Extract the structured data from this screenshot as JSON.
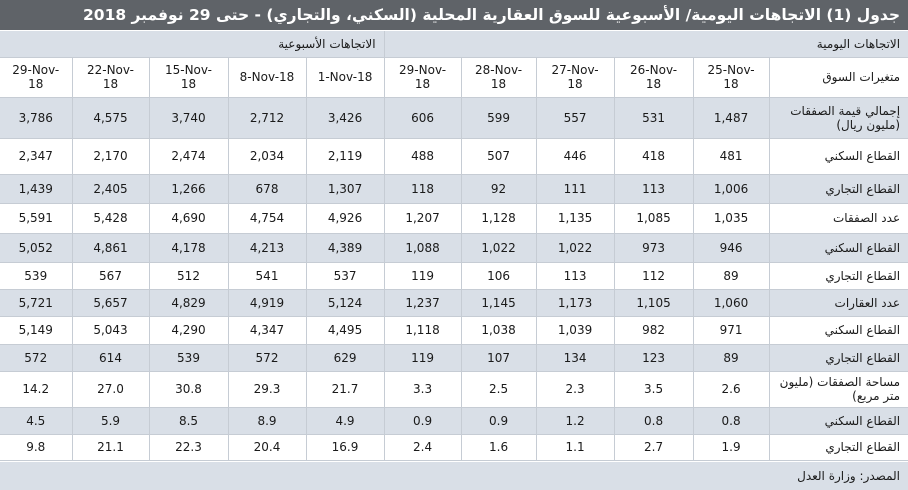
{
  "title": "جدول (1) الاتجاهات اليومية/ الأسبوعية للسوق العقارية المحلية (السكني، والتجاري) - حتى 29 نوفمبر 2018",
  "groups": {
    "weekly": "الاتجاهات الأسبوعية",
    "daily": "الاتجاهات اليومية"
  },
  "header": {
    "label": "متغيرات السوق",
    "dates": [
      "29-Nov-18",
      "22-Nov-18",
      "15-Nov-18",
      "8-Nov-18",
      "1-Nov-18",
      "29-Nov-18",
      "28-Nov-18",
      "27-Nov-18",
      "26-Nov-18",
      "25-Nov-18"
    ]
  },
  "rows": [
    {
      "label": "إجمالي قيمة الصفقات (مليون ريال)",
      "values": [
        "3,786",
        "4,575",
        "3,740",
        "2,712",
        "3,426",
        "606",
        "599",
        "557",
        "531",
        "1,487"
      ]
    },
    {
      "label": "القطاع السكني",
      "values": [
        "2,347",
        "2,170",
        "2,474",
        "2,034",
        "2,119",
        "488",
        "507",
        "446",
        "418",
        "481"
      ]
    },
    {
      "label": "القطاع التجاري",
      "values": [
        "1,439",
        "2,405",
        "1,266",
        "678",
        "1,307",
        "118",
        "92",
        "111",
        "113",
        "1,006"
      ]
    },
    {
      "label": "عدد الصفقات",
      "values": [
        "5,591",
        "5,428",
        "4,690",
        "4,754",
        "4,926",
        "1,207",
        "1,128",
        "1,135",
        "1,085",
        "1,035"
      ]
    },
    {
      "label": "القطاع السكني",
      "values": [
        "5,052",
        "4,861",
        "4,178",
        "4,213",
        "4,389",
        "1,088",
        "1,022",
        "1,022",
        "973",
        "946"
      ]
    },
    {
      "label": "القطاع التجاري",
      "values": [
        "539",
        "567",
        "512",
        "541",
        "537",
        "119",
        "106",
        "113",
        "112",
        "89"
      ]
    },
    {
      "label": "عدد العقارات",
      "values": [
        "5,721",
        "5,657",
        "4,829",
        "4,919",
        "5,124",
        "1,237",
        "1,145",
        "1,173",
        "1,105",
        "1,060"
      ]
    },
    {
      "label": "القطاع السكني",
      "values": [
        "5,149",
        "5,043",
        "4,290",
        "4,347",
        "4,495",
        "1,118",
        "1,038",
        "1,039",
        "982",
        "971"
      ]
    },
    {
      "label": "القطاع التجاري",
      "values": [
        "572",
        "614",
        "539",
        "572",
        "629",
        "119",
        "107",
        "134",
        "123",
        "89"
      ]
    },
    {
      "label": "مساحة الصفقات (مليون متر مربع)",
      "values": [
        "14.2",
        "27.0",
        "30.8",
        "29.3",
        "21.7",
        "3.3",
        "2.5",
        "2.3",
        "3.5",
        "2.6"
      ]
    },
    {
      "label": "القطاع السكني",
      "values": [
        "4.5",
        "5.9",
        "8.5",
        "8.9",
        "4.9",
        "0.9",
        "0.9",
        "1.2",
        "0.8",
        "0.8"
      ]
    },
    {
      "label": "القطاع التجاري",
      "values": [
        "9.8",
        "21.1",
        "22.3",
        "20.4",
        "16.9",
        "2.4",
        "1.6",
        "1.1",
        "2.7",
        "1.9"
      ]
    }
  ],
  "source": "المصدر: وزارة العدل"
}
